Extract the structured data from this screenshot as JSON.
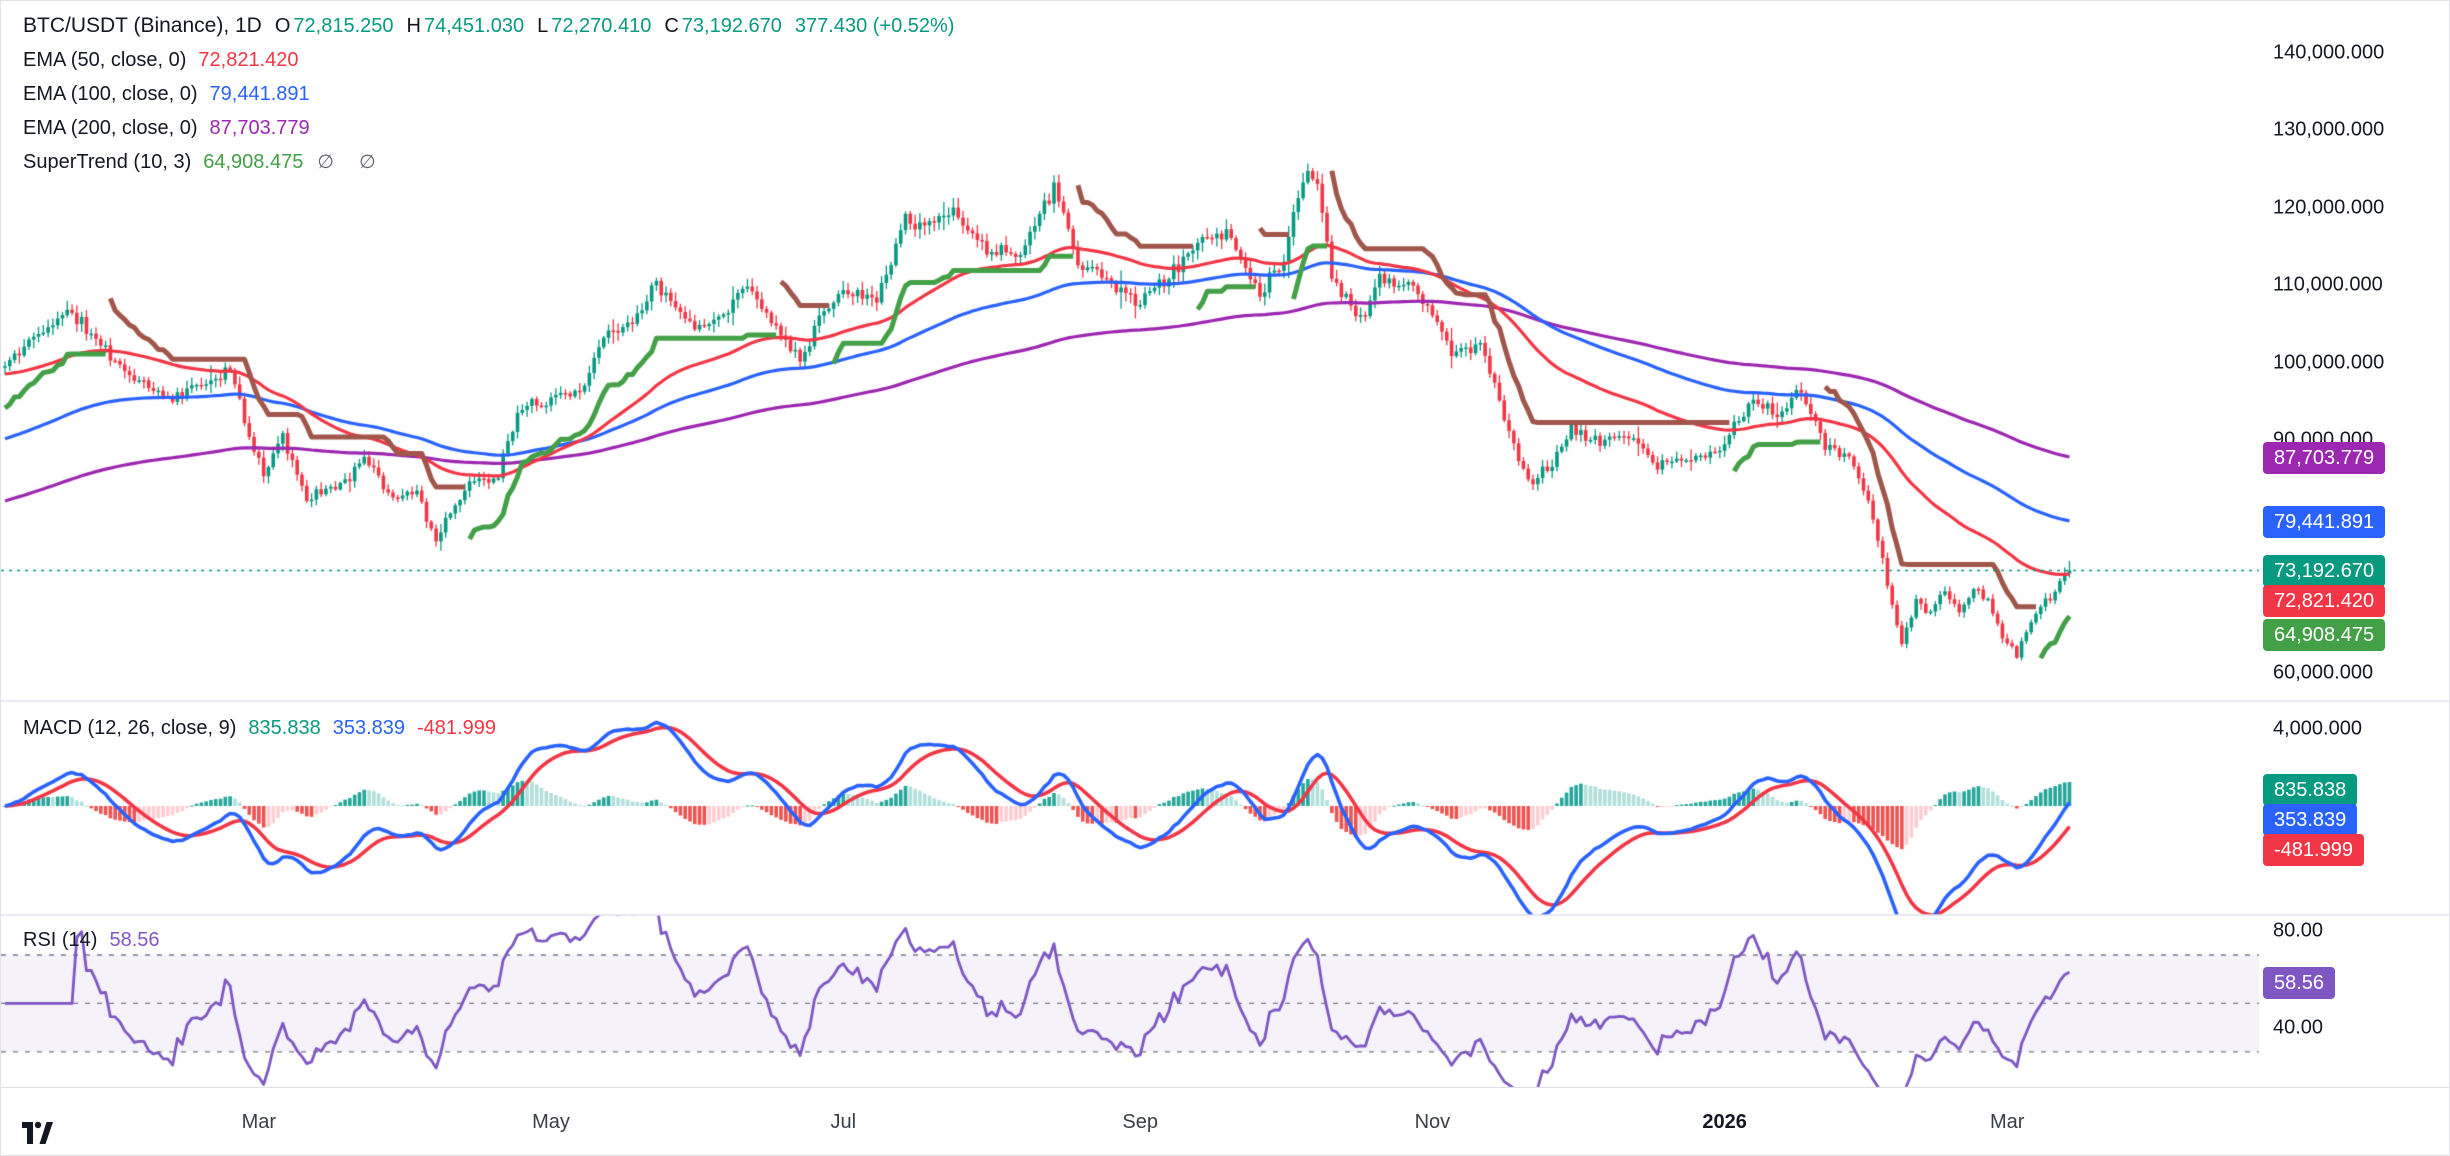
{
  "header": {
    "symbol_title": "BTC/USDT (Binance), 1D",
    "ohlc": {
      "o_label": "O",
      "o": "72,815.250",
      "h_label": "H",
      "h": "74,451.030",
      "l_label": "L",
      "l": "72,270.410",
      "c_label": "C",
      "c": "73,192.670",
      "change": "377.430 (+0.52%)"
    },
    "indicators": [
      {
        "label": "EMA (50, close, 0)",
        "value": "72,821.420",
        "color": "#f23645"
      },
      {
        "label": "EMA (100, close, 0)",
        "value": "79,441.891",
        "color": "#2962ff"
      },
      {
        "label": "EMA (200, close, 0)",
        "value": "87,703.779",
        "color": "#9c27b0"
      },
      {
        "label": "SuperTrend (10, 3)",
        "value": "64,908.475",
        "color": "#43a047",
        "extra": "∅ ∅"
      }
    ]
  },
  "macd_legend": {
    "label": "MACD (12, 26, close, 9)",
    "values": [
      {
        "text": "835.838",
        "color": "#089981"
      },
      {
        "text": "353.839",
        "color": "#2962ff"
      },
      {
        "text": "-481.999",
        "color": "#f23645"
      }
    ]
  },
  "rsi_legend": {
    "label": "RSI (14)",
    "value": "58.56",
    "color": "#7e57c2"
  },
  "axes": {
    "main": {
      "ticks": [
        {
          "text": "140,000.000",
          "value": 140000
        },
        {
          "text": "130,000.000",
          "value": 130000
        },
        {
          "text": "120,000.000",
          "value": 120000
        },
        {
          "text": "110,000.000",
          "value": 110000
        },
        {
          "text": "100,000.000",
          "value": 100000
        },
        {
          "text": "90,000.000",
          "value": 90000
        },
        {
          "text": "60,000.000",
          "value": 60000
        }
      ],
      "tags": [
        {
          "text": "87,703.779",
          "value": 87703.779,
          "color": "#9c27b0"
        },
        {
          "text": "79,441.891",
          "value": 79441.891,
          "color": "#2962ff"
        },
        {
          "text": "73,192.670",
          "value": 73192.67,
          "color": "#089981"
        },
        {
          "text": "72,821.420",
          "value": 72821.42,
          "color": "#f23645"
        },
        {
          "text": "64,908.475",
          "value": 64908.475,
          "color": "#43a047"
        }
      ]
    },
    "macd": {
      "ticks": [
        {
          "text": "4,000.000",
          "value": 4000
        }
      ],
      "tags": [
        {
          "text": "835.838",
          "value": 835.838,
          "color": "#089981"
        },
        {
          "text": "353.839",
          "value": 353.839,
          "color": "#2962ff"
        },
        {
          "text": "-481.999",
          "value": -481.999,
          "color": "#f23645"
        }
      ]
    },
    "rsi": {
      "ticks": [
        {
          "text": "80.00",
          "value": 80
        },
        {
          "text": "40.00",
          "value": 40
        }
      ],
      "tags": [
        {
          "text": "58.56",
          "value": 58.56,
          "color": "#7e57c2"
        }
      ]
    }
  },
  "time_axis": {
    "labels": [
      {
        "text": "Mar",
        "day": 53
      },
      {
        "text": "May",
        "day": 114
      },
      {
        "text": "Jul",
        "day": 175
      },
      {
        "text": "Sep",
        "day": 237
      },
      {
        "text": "Nov",
        "day": 298
      },
      {
        "text": "2026",
        "day": 359,
        "bold": true
      },
      {
        "text": "Mar",
        "day": 418
      }
    ]
  },
  "chart_data": [
    {
      "type": "candlestick",
      "symbol": "BTC/USDT",
      "exchange": "Binance",
      "timeframe": "1D",
      "last": {
        "open": 72815.25,
        "high": 74451.03,
        "low": 72270.41,
        "close": 73192.67,
        "change": 377.43,
        "change_pct": 0.52
      },
      "ylim": [
        56370,
        146650
      ],
      "y_ticks": [
        140000,
        130000,
        120000,
        110000,
        100000,
        90000,
        60000
      ],
      "up_color": "#089981",
      "down_color": "#f23645",
      "emas": [
        {
          "period": 50,
          "last": 72821.42,
          "color": "#f23645",
          "seed": 98500
        },
        {
          "period": 100,
          "last": 79441.891,
          "color": "#2962ff",
          "seed": 90000
        },
        {
          "period": 200,
          "last": 87703.779,
          "color": "#9c27b0",
          "seed": 82000
        }
      ],
      "supertrend": {
        "period": 10,
        "multiplier": 3,
        "last": 64908.475,
        "up_color": "#43a047",
        "down_color": "#a0564b"
      },
      "price_path": [
        [
          0,
          99500
        ],
        [
          8,
          104500
        ],
        [
          14,
          106500
        ],
        [
          21,
          101500
        ],
        [
          27,
          98000
        ],
        [
          34,
          95500
        ],
        [
          41,
          97000
        ],
        [
          47,
          99500
        ],
        [
          50,
          92000
        ],
        [
          54,
          85500
        ],
        [
          58,
          90500
        ],
        [
          63,
          82500
        ],
        [
          69,
          84000
        ],
        [
          76,
          87500
        ],
        [
          81,
          82500
        ],
        [
          86,
          83500
        ],
        [
          90,
          77000
        ],
        [
          92,
          79500
        ],
        [
          96,
          84000
        ],
        [
          103,
          85500
        ],
        [
          107,
          93500
        ],
        [
          114,
          95500
        ],
        [
          121,
          97000
        ],
        [
          125,
          103500
        ],
        [
          133,
          106500
        ],
        [
          136,
          110500
        ],
        [
          143,
          104500
        ],
        [
          149,
          105500
        ],
        [
          154,
          110000
        ],
        [
          160,
          105500
        ],
        [
          166,
          100500
        ],
        [
          171,
          107000
        ],
        [
          177,
          109500
        ],
        [
          182,
          108500
        ],
        [
          188,
          119000
        ],
        [
          192,
          117500
        ],
        [
          198,
          119500
        ],
        [
          205,
          114500
        ],
        [
          211,
          114000
        ],
        [
          218,
          121000
        ],
        [
          219,
          123500
        ],
        [
          224,
          113500
        ],
        [
          230,
          110500
        ],
        [
          237,
          108000
        ],
        [
          243,
          111000
        ],
        [
          249,
          115500
        ],
        [
          255,
          117000
        ],
        [
          262,
          109000
        ],
        [
          267,
          114000
        ],
        [
          272,
          125500
        ],
        [
          274,
          123500
        ],
        [
          277,
          111000
        ],
        [
          283,
          105500
        ],
        [
          287,
          111000
        ],
        [
          294,
          110000
        ],
        [
          298,
          106500
        ],
        [
          302,
          101000
        ],
        [
          308,
          102500
        ],
        [
          312,
          95000
        ],
        [
          318,
          84500
        ],
        [
          323,
          87000
        ],
        [
          327,
          91500
        ],
        [
          333,
          89500
        ],
        [
          339,
          91000
        ],
        [
          345,
          86500
        ],
        [
          351,
          87500
        ],
        [
          358,
          88500
        ],
        [
          364,
          95000
        ],
        [
          370,
          93500
        ],
        [
          375,
          96000
        ],
        [
          380,
          89500
        ],
        [
          386,
          87000
        ],
        [
          390,
          80500
        ],
        [
          393,
          71500
        ],
        [
          396,
          64000
        ],
        [
          399,
          69500
        ],
        [
          402,
          67500
        ],
        [
          405,
          70500
        ],
        [
          408,
          68000
        ],
        [
          411,
          71000
        ],
        [
          414,
          69500
        ],
        [
          417,
          64500
        ],
        [
          420,
          62500
        ],
        [
          423,
          66500
        ],
        [
          426,
          69000
        ],
        [
          429,
          71500
        ],
        [
          431,
          73192.67
        ]
      ]
    },
    {
      "type": "macd",
      "params": {
        "fast": 12,
        "slow": 26,
        "source": "close",
        "signal": 9
      },
      "last": {
        "histogram": 835.838,
        "macd": 353.839,
        "signal": -481.999
      },
      "ylim": [
        -5670,
        5460
      ],
      "y_ticks": [
        4000
      ],
      "colors": {
        "macd": "#2962ff",
        "signal": "#f23645",
        "hist_up": "#26a69a",
        "hist_up_weak": "#b2dfdb",
        "hist_down": "#ef5350",
        "hist_down_weak": "#ffcdd2"
      }
    },
    {
      "type": "rsi",
      "period": 14,
      "last": 58.56,
      "bands": [
        70,
        50,
        30
      ],
      "ylim": [
        15.5,
        86.5
      ],
      "y_ticks": [
        80,
        40
      ],
      "color": "#7e57c2",
      "band_fill": "rgba(126,87,194,0.08)",
      "band_line_color": "#787b86"
    }
  ]
}
